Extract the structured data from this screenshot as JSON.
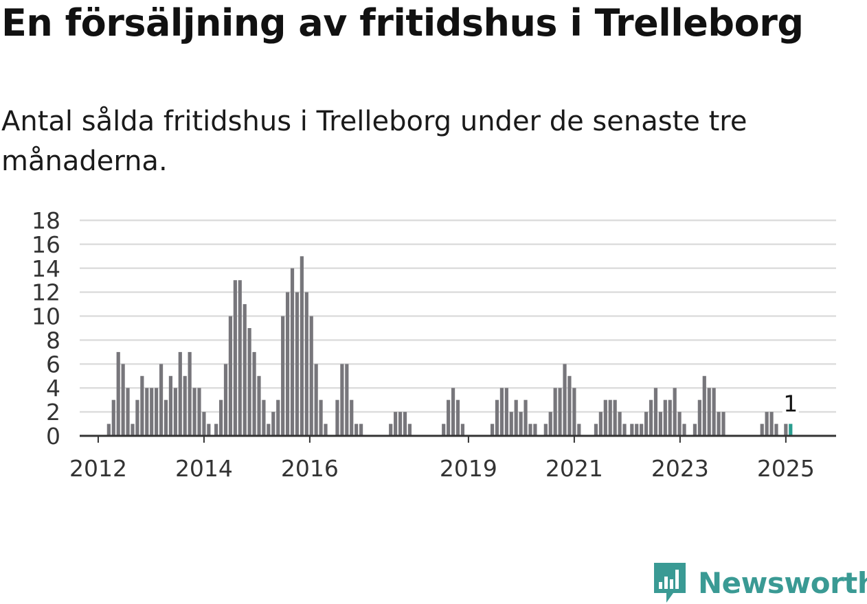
{
  "title": "En försäljning av fritidshus i Trelleborg",
  "subtitle": "Antal sålda fritidshus i Trelleborg under de senaste tre månaderna.",
  "brand": {
    "name": "Newsworthy",
    "color": "#3a9a94",
    "icon": "newsworthy-logo-icon"
  },
  "colors": {
    "bar": "#77767b",
    "highlight": "#2a9d8f",
    "grid": "#dddddd",
    "axis": "#333333"
  },
  "chart_data": {
    "type": "bar",
    "ylim": [
      0,
      18
    ],
    "yticks": [
      0,
      2,
      4,
      6,
      8,
      10,
      12,
      14,
      16,
      18
    ],
    "xlim": [
      2011.65,
      2025.95
    ],
    "xticks": [
      2012,
      2014,
      2016,
      2019,
      2021,
      2023,
      2025
    ],
    "grid": true,
    "bars": [
      {
        "x": 2012.2,
        "y": 1
      },
      {
        "x": 2012.29,
        "y": 3
      },
      {
        "x": 2012.38,
        "y": 7
      },
      {
        "x": 2012.47,
        "y": 6
      },
      {
        "x": 2012.56,
        "y": 4
      },
      {
        "x": 2012.65,
        "y": 1
      },
      {
        "x": 2012.74,
        "y": 3
      },
      {
        "x": 2012.83,
        "y": 5
      },
      {
        "x": 2012.92,
        "y": 4
      },
      {
        "x": 2013.01,
        "y": 4
      },
      {
        "x": 2013.1,
        "y": 4
      },
      {
        "x": 2013.19,
        "y": 6
      },
      {
        "x": 2013.28,
        "y": 3
      },
      {
        "x": 2013.37,
        "y": 5
      },
      {
        "x": 2013.46,
        "y": 4
      },
      {
        "x": 2013.55,
        "y": 7
      },
      {
        "x": 2013.64,
        "y": 5
      },
      {
        "x": 2013.73,
        "y": 7
      },
      {
        "x": 2013.82,
        "y": 4
      },
      {
        "x": 2013.91,
        "y": 4
      },
      {
        "x": 2014.0,
        "y": 2
      },
      {
        "x": 2014.09,
        "y": 1
      },
      {
        "x": 2014.23,
        "y": 1
      },
      {
        "x": 2014.32,
        "y": 3
      },
      {
        "x": 2014.41,
        "y": 6
      },
      {
        "x": 2014.5,
        "y": 10
      },
      {
        "x": 2014.59,
        "y": 13
      },
      {
        "x": 2014.68,
        "y": 13
      },
      {
        "x": 2014.77,
        "y": 11
      },
      {
        "x": 2014.86,
        "y": 9
      },
      {
        "x": 2014.95,
        "y": 7
      },
      {
        "x": 2015.04,
        "y": 5
      },
      {
        "x": 2015.13,
        "y": 3
      },
      {
        "x": 2015.22,
        "y": 1
      },
      {
        "x": 2015.31,
        "y": 2
      },
      {
        "x": 2015.4,
        "y": 3
      },
      {
        "x": 2015.49,
        "y": 10
      },
      {
        "x": 2015.58,
        "y": 12
      },
      {
        "x": 2015.67,
        "y": 14
      },
      {
        "x": 2015.76,
        "y": 12
      },
      {
        "x": 2015.85,
        "y": 15
      },
      {
        "x": 2015.94,
        "y": 12
      },
      {
        "x": 2016.03,
        "y": 10
      },
      {
        "x": 2016.12,
        "y": 6
      },
      {
        "x": 2016.21,
        "y": 3
      },
      {
        "x": 2016.3,
        "y": 1
      },
      {
        "x": 2016.52,
        "y": 3
      },
      {
        "x": 2016.61,
        "y": 6
      },
      {
        "x": 2016.7,
        "y": 6
      },
      {
        "x": 2016.79,
        "y": 3
      },
      {
        "x": 2016.88,
        "y": 1
      },
      {
        "x": 2016.97,
        "y": 1
      },
      {
        "x": 2017.53,
        "y": 1
      },
      {
        "x": 2017.62,
        "y": 2
      },
      {
        "x": 2017.71,
        "y": 2
      },
      {
        "x": 2017.8,
        "y": 2
      },
      {
        "x": 2017.89,
        "y": 1
      },
      {
        "x": 2018.53,
        "y": 1
      },
      {
        "x": 2018.62,
        "y": 3
      },
      {
        "x": 2018.71,
        "y": 4
      },
      {
        "x": 2018.8,
        "y": 3
      },
      {
        "x": 2018.89,
        "y": 1
      },
      {
        "x": 2019.45,
        "y": 1
      },
      {
        "x": 2019.54,
        "y": 3
      },
      {
        "x": 2019.63,
        "y": 4
      },
      {
        "x": 2019.72,
        "y": 4
      },
      {
        "x": 2019.81,
        "y": 2
      },
      {
        "x": 2019.9,
        "y": 3
      },
      {
        "x": 2019.99,
        "y": 2
      },
      {
        "x": 2020.08,
        "y": 3
      },
      {
        "x": 2020.17,
        "y": 1
      },
      {
        "x": 2020.26,
        "y": 1
      },
      {
        "x": 2020.46,
        "y": 1
      },
      {
        "x": 2020.55,
        "y": 2
      },
      {
        "x": 2020.64,
        "y": 4
      },
      {
        "x": 2020.73,
        "y": 4
      },
      {
        "x": 2020.82,
        "y": 6
      },
      {
        "x": 2020.91,
        "y": 5
      },
      {
        "x": 2021.0,
        "y": 4
      },
      {
        "x": 2021.09,
        "y": 1
      },
      {
        "x": 2021.41,
        "y": 1
      },
      {
        "x": 2021.5,
        "y": 2
      },
      {
        "x": 2021.59,
        "y": 3
      },
      {
        "x": 2021.68,
        "y": 3
      },
      {
        "x": 2021.77,
        "y": 3
      },
      {
        "x": 2021.86,
        "y": 2
      },
      {
        "x": 2021.95,
        "y": 1
      },
      {
        "x": 2022.09,
        "y": 1
      },
      {
        "x": 2022.18,
        "y": 1
      },
      {
        "x": 2022.27,
        "y": 1
      },
      {
        "x": 2022.36,
        "y": 2
      },
      {
        "x": 2022.45,
        "y": 3
      },
      {
        "x": 2022.54,
        "y": 4
      },
      {
        "x": 2022.63,
        "y": 2
      },
      {
        "x": 2022.72,
        "y": 3
      },
      {
        "x": 2022.81,
        "y": 3
      },
      {
        "x": 2022.9,
        "y": 4
      },
      {
        "x": 2022.99,
        "y": 2
      },
      {
        "x": 2023.08,
        "y": 1
      },
      {
        "x": 2023.28,
        "y": 1
      },
      {
        "x": 2023.37,
        "y": 3
      },
      {
        "x": 2023.46,
        "y": 5
      },
      {
        "x": 2023.55,
        "y": 4
      },
      {
        "x": 2023.64,
        "y": 4
      },
      {
        "x": 2023.73,
        "y": 2
      },
      {
        "x": 2023.82,
        "y": 2
      },
      {
        "x": 2024.55,
        "y": 1
      },
      {
        "x": 2024.64,
        "y": 2
      },
      {
        "x": 2024.73,
        "y": 2
      },
      {
        "x": 2024.82,
        "y": 1
      },
      {
        "x": 2025.0,
        "y": 1
      },
      {
        "x": 2025.09,
        "y": 1,
        "highlight": true
      }
    ],
    "annotation": {
      "x": 2025.09,
      "text": "1"
    }
  }
}
